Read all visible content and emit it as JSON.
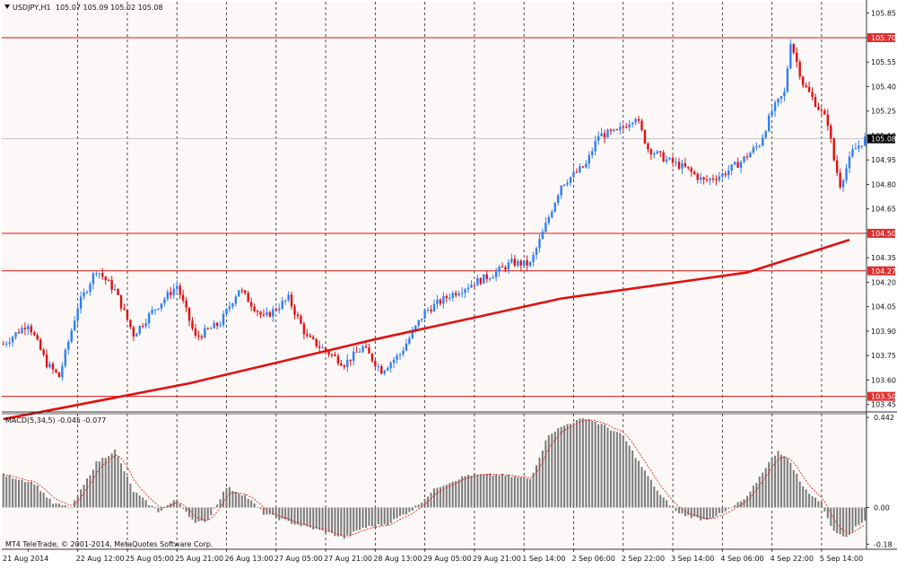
{
  "chart_data": [
    {
      "type": "candlestick",
      "panel": "price",
      "symbol_title": "USDJPY,H1",
      "ohlc_header": "105.07 105.09 105.02 105.08",
      "y_range": [
        103.41,
        105.92
      ],
      "y_ticks": [
        "105.85",
        "105.70",
        "105.55",
        "105.40",
        "105.25",
        "105.10",
        "104.95",
        "104.80",
        "104.65",
        "104.50",
        "104.35",
        "104.20",
        "104.05",
        "103.90",
        "103.75",
        "103.60",
        "103.45"
      ],
      "y_tick_values": [
        105.85,
        105.7,
        105.55,
        105.4,
        105.25,
        105.1,
        104.95,
        104.8,
        104.65,
        104.5,
        104.35,
        104.2,
        104.05,
        103.9,
        103.75,
        103.6,
        103.45
      ],
      "current_price": {
        "label": "105.08",
        "value": 105.08
      },
      "horizontal_levels": [
        {
          "label": "105.70",
          "value": 105.7
        },
        {
          "label": "104.50",
          "value": 104.5
        },
        {
          "label": "104.27",
          "value": 104.27
        },
        {
          "label": "103.50",
          "value": 103.5
        }
      ],
      "trendline": {
        "name": "moving average",
        "points": [
          [
            0,
            103.36
          ],
          [
            60,
            103.58
          ],
          [
            120,
            103.85
          ],
          [
            180,
            104.1
          ],
          [
            240,
            104.26
          ],
          [
            273,
            104.46
          ]
        ]
      },
      "price_path": [
        [
          0,
          103.82
        ],
        [
          8,
          103.95
        ],
        [
          14,
          103.7
        ],
        [
          18,
          103.62
        ],
        [
          24,
          104.05
        ],
        [
          30,
          104.28
        ],
        [
          36,
          104.15
        ],
        [
          42,
          103.88
        ],
        [
          48,
          104.02
        ],
        [
          56,
          104.18
        ],
        [
          62,
          103.86
        ],
        [
          70,
          103.95
        ],
        [
          76,
          104.16
        ],
        [
          84,
          103.98
        ],
        [
          92,
          104.1
        ],
        [
          98,
          103.86
        ],
        [
          104,
          103.78
        ],
        [
          110,
          103.7
        ],
        [
          116,
          103.8
        ],
        [
          122,
          103.66
        ],
        [
          128,
          103.76
        ],
        [
          136,
          104.02
        ],
        [
          144,
          104.12
        ],
        [
          150,
          104.18
        ],
        [
          158,
          104.25
        ],
        [
          164,
          104.32
        ],
        [
          170,
          104.31
        ],
        [
          174,
          104.5
        ],
        [
          180,
          104.8
        ],
        [
          188,
          104.92
        ],
        [
          192,
          105.1
        ],
        [
          198,
          105.12
        ],
        [
          204,
          105.22
        ],
        [
          208,
          105.02
        ],
        [
          214,
          104.95
        ],
        [
          220,
          104.9
        ],
        [
          226,
          104.82
        ],
        [
          232,
          104.86
        ],
        [
          238,
          104.94
        ],
        [
          244,
          105.05
        ],
        [
          248,
          105.25
        ],
        [
          252,
          105.36
        ],
        [
          254,
          105.68
        ],
        [
          258,
          105.42
        ],
        [
          262,
          105.3
        ],
        [
          266,
          105.18
        ],
        [
          268,
          104.95
        ],
        [
          270,
          104.8
        ],
        [
          274,
          105.0
        ],
        [
          278,
          105.08
        ]
      ],
      "bar_count": 279,
      "x_tick_labels": [
        "21 Aug 2014",
        "22 Aug 12:00",
        "25 Aug 05:00",
        "25 Aug 21:00",
        "26 Aug 13:00",
        "27 Aug 05:00",
        "27 Aug 21:00",
        "28 Aug 13:00",
        "29 Aug 05:00",
        "29 Aug 21:00",
        "1 Sep 14:00",
        "2 Sep 06:00",
        "2 Sep 22:00",
        "3 Sep 14:00",
        "4 Sep 06:00",
        "4 Sep 22:00",
        "5 Sep 14:00"
      ],
      "bull_color": "#2f7ef5",
      "bear_color": "#e01010",
      "level_color": "#e01010",
      "label_bg_color": "#e03030",
      "current_label_bg": "#000000",
      "grid": "vertical dashed",
      "copyright": "MT4 TeleTrade, © 2001-2014, MetaQuotes Software Corp."
    },
    {
      "type": "histogram",
      "panel": "macd",
      "title": "MACD(5,34,5) -0.045 -0.077",
      "y_range": [
        -0.205,
        0.46
      ],
      "y_ticks": [
        "0.442",
        "0.00",
        "-0.18"
      ],
      "y_tick_values": [
        0.442,
        0.0,
        -0.18
      ],
      "macd_path": [
        [
          0,
          0.16
        ],
        [
          10,
          0.12
        ],
        [
          16,
          0.02
        ],
        [
          22,
          0.0
        ],
        [
          30,
          0.22
        ],
        [
          36,
          0.28
        ],
        [
          42,
          0.08
        ],
        [
          50,
          -0.02
        ],
        [
          56,
          0.04
        ],
        [
          62,
          -0.08
        ],
        [
          66,
          -0.06
        ],
        [
          72,
          0.1
        ],
        [
          78,
          0.06
        ],
        [
          84,
          -0.03
        ],
        [
          94,
          -0.08
        ],
        [
          104,
          -0.12
        ],
        [
          110,
          -0.15
        ],
        [
          116,
          -0.1
        ],
        [
          124,
          -0.08
        ],
        [
          132,
          -0.01
        ],
        [
          140,
          0.1
        ],
        [
          150,
          0.16
        ],
        [
          160,
          0.16
        ],
        [
          170,
          0.14
        ],
        [
          176,
          0.36
        ],
        [
          182,
          0.41
        ],
        [
          188,
          0.44
        ],
        [
          194,
          0.4
        ],
        [
          200,
          0.35
        ],
        [
          206,
          0.2
        ],
        [
          212,
          0.06
        ],
        [
          218,
          -0.03
        ],
        [
          226,
          -0.06
        ],
        [
          232,
          -0.03
        ],
        [
          240,
          0.05
        ],
        [
          246,
          0.2
        ],
        [
          250,
          0.28
        ],
        [
          254,
          0.22
        ],
        [
          258,
          0.1
        ],
        [
          264,
          0.02
        ],
        [
          268,
          -0.12
        ],
        [
          272,
          -0.14
        ],
        [
          278,
          -0.06
        ]
      ],
      "bar_color": "#7a7a7a",
      "signal_color": "#e01010"
    }
  ]
}
